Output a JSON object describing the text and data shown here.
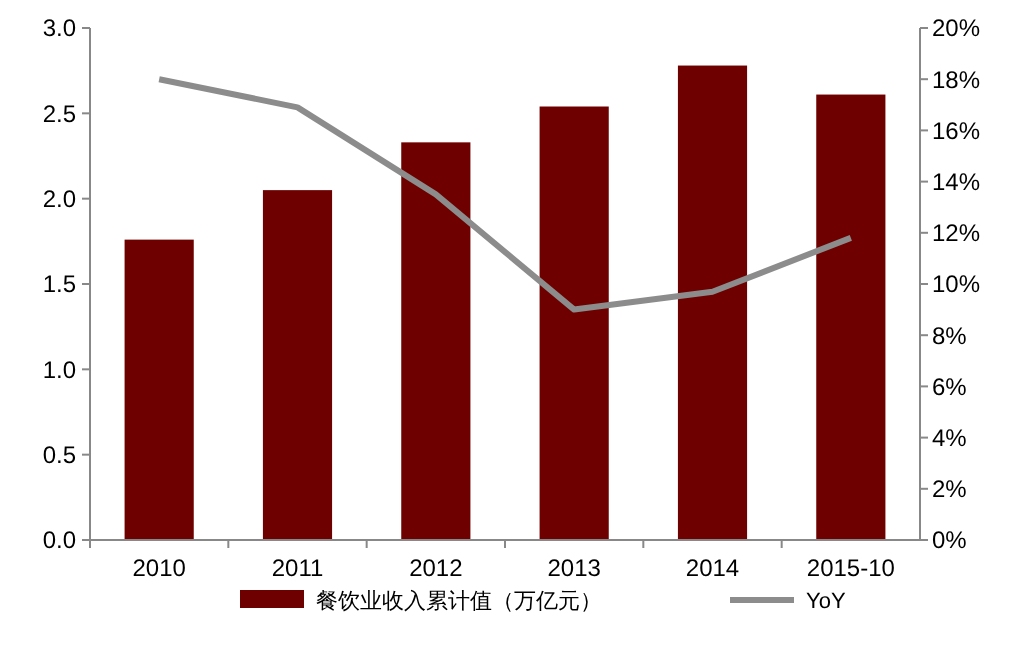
{
  "chart_data": {
    "type": "bar",
    "categories": [
      "2010",
      "2011",
      "2012",
      "2013",
      "2014",
      "2015-10"
    ],
    "series": [
      {
        "name": "餐饮业收入累计值（万亿元）",
        "color": "#6e0000",
        "values": [
          1.76,
          2.05,
          2.33,
          2.54,
          2.78,
          2.61
        ]
      },
      {
        "name": "YoY",
        "type": "line",
        "axis": "y2",
        "color": "#8c8c8c",
        "values": [
          18.0,
          16.9,
          13.5,
          9.0,
          9.7,
          11.8
        ]
      }
    ],
    "ylim": [
      0,
      3
    ],
    "yticks": [
      {
        "value": 0,
        "label": "0.0"
      },
      {
        "value": 0.5,
        "label": "0.5"
      },
      {
        "value": 1,
        "label": "1.0"
      },
      {
        "value": 1.5,
        "label": "1.5"
      },
      {
        "value": 2,
        "label": "2.0"
      },
      {
        "value": 2.5,
        "label": "2.5"
      },
      {
        "value": 3,
        "label": "3.0"
      }
    ],
    "y2lim": [
      0,
      20
    ],
    "y2ticks": [
      {
        "value": 0,
        "label": "0%"
      },
      {
        "value": 2,
        "label": "2%"
      },
      {
        "value": 4,
        "label": "4%"
      },
      {
        "value": 6,
        "label": "6%"
      },
      {
        "value": 8,
        "label": "8%"
      },
      {
        "value": 10,
        "label": "10%"
      },
      {
        "value": 12,
        "label": "12%"
      },
      {
        "value": 14,
        "label": "14%"
      },
      {
        "value": 16,
        "label": "16%"
      },
      {
        "value": 18,
        "label": "18%"
      },
      {
        "value": 20,
        "label": "20%"
      }
    ],
    "grid": false,
    "legend": "bottom",
    "marker": "none",
    "line_style": "solid"
  }
}
